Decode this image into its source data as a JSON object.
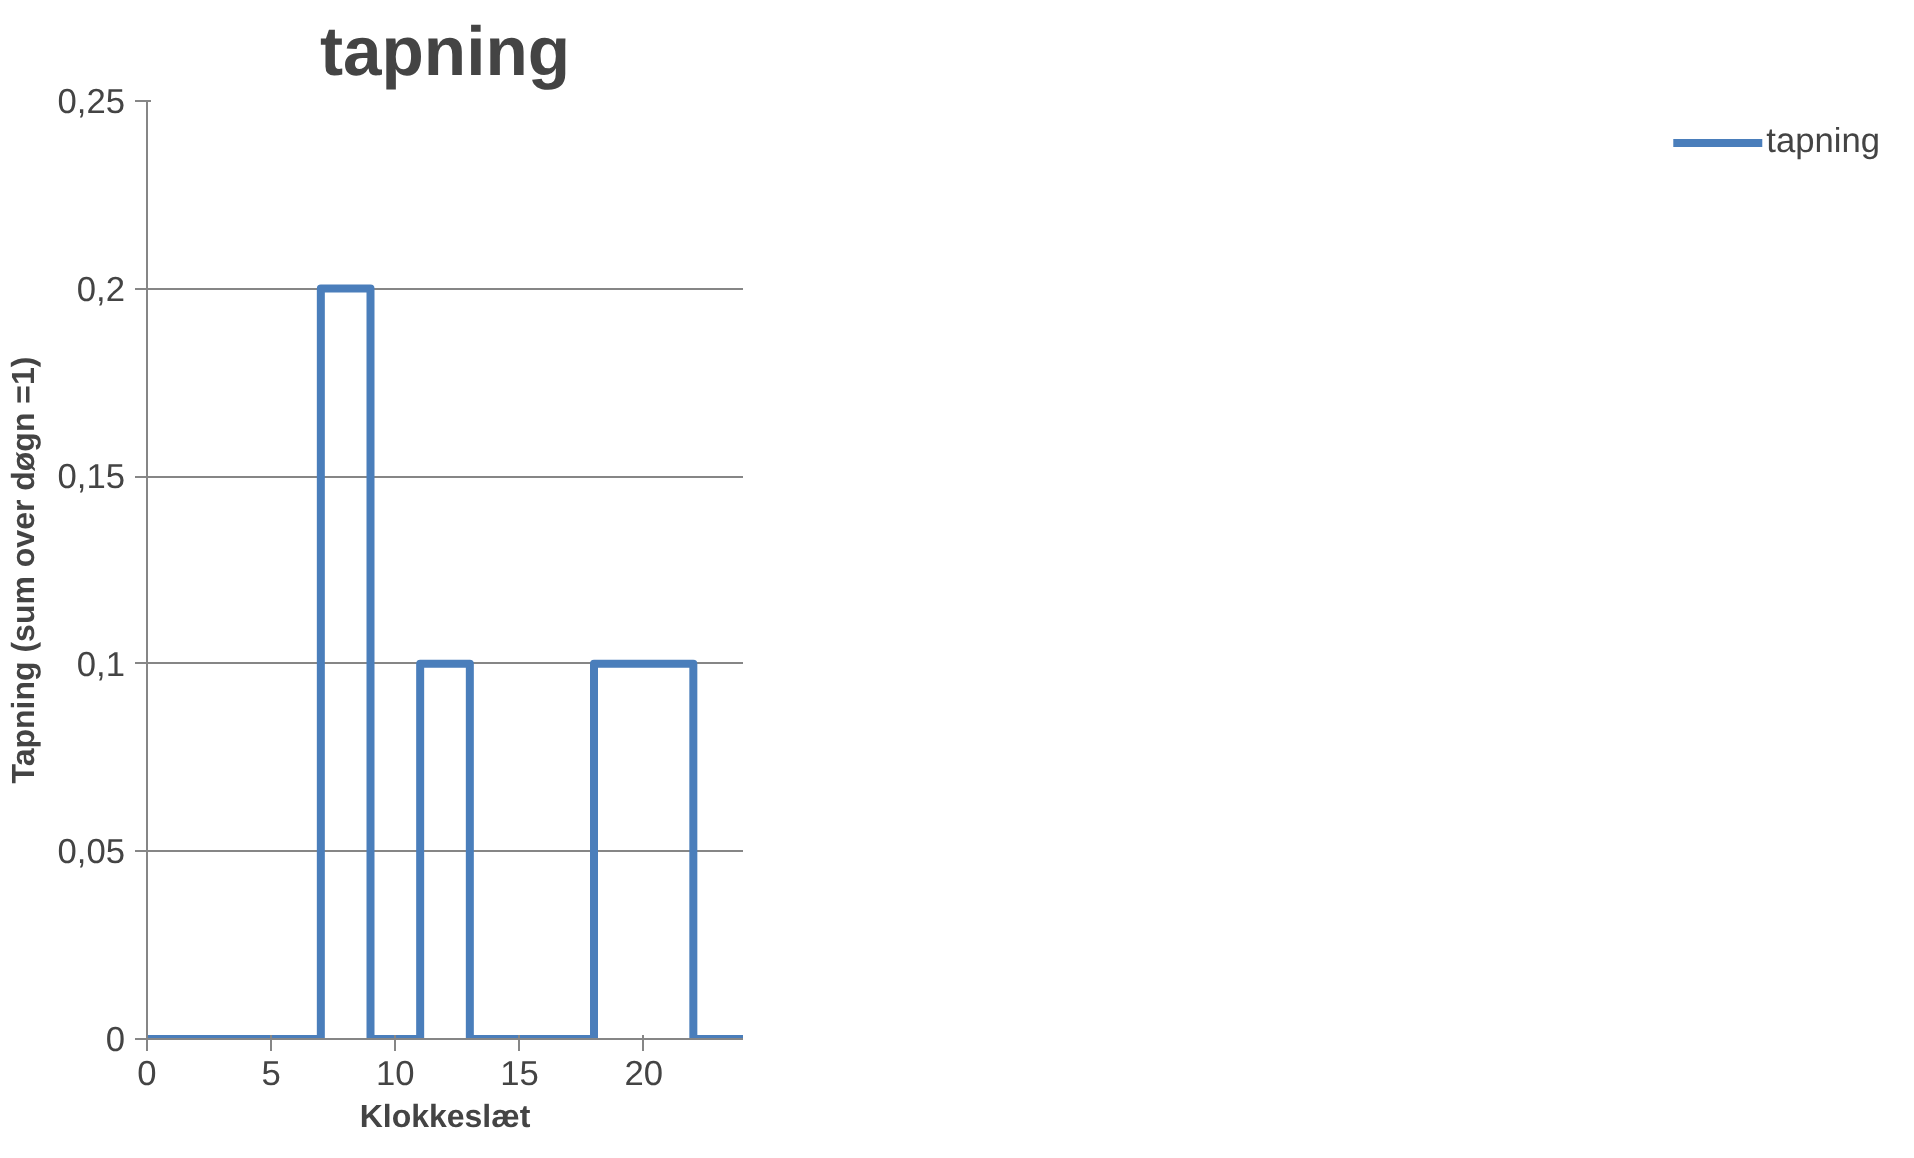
{
  "chart_data": {
    "type": "step",
    "title": "tapning",
    "xlabel": "Klokkeslæt",
    "ylabel": "Tapning (sum over døgn =1)",
    "x": [
      0,
      7,
      9,
      11,
      13,
      18,
      22,
      24
    ],
    "series": [
      {
        "name": "tapning",
        "color": "#4a7ebb",
        "values": [
          0,
          0.2,
          0,
          0.1,
          0,
          0.1,
          0,
          0
        ]
      }
    ],
    "xlim": [
      0,
      24
    ],
    "xticks": [
      0,
      5,
      10,
      15,
      20
    ],
    "ylim": [
      0,
      0.25
    ],
    "yticks": [
      0,
      {
        "value": 0.05,
        "label": "0,05"
      },
      {
        "value": 0.1,
        "label": "0,1"
      },
      {
        "value": 0.15,
        "label": "0,15"
      },
      {
        "value": 0.2,
        "label": "0,2"
      },
      {
        "value": 0.25,
        "label": "0,25"
      }
    ],
    "grid": "y",
    "legend": "right",
    "line_style": "solid"
  }
}
